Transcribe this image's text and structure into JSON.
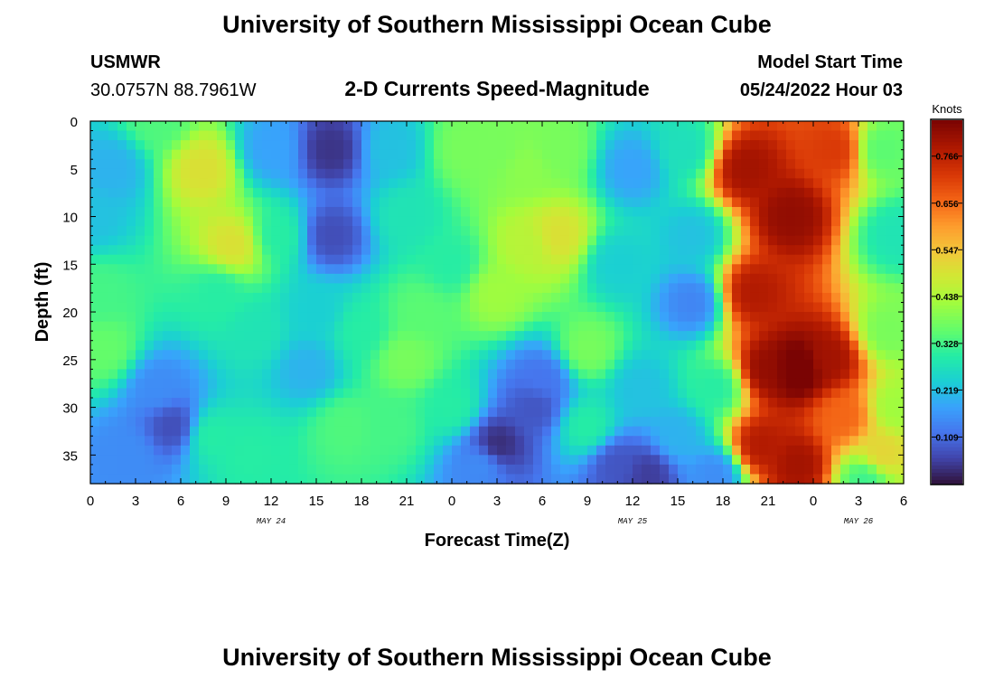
{
  "header": {
    "title": "University of Southern Mississippi Ocean Cube",
    "station": "USMWR",
    "coords": "30.0757N  88.7961W",
    "plot_title": "2-D Currents Speed-Magnitude",
    "model_label": "Model Start Time",
    "model_time": "05/24/2022 Hour 03"
  },
  "footer": {
    "title": "University of Southern Mississippi Ocean Cube"
  },
  "colors": {
    "low": "#30123b",
    "high": "#7a0403",
    "colormap": "turbo"
  },
  "chart_data": {
    "type": "heatmap",
    "xlabel": "Forecast Time(Z)",
    "ylabel": "Depth (ft)",
    "x_ticks": [
      "0",
      "3",
      "6",
      "9",
      "12",
      "15",
      "18",
      "21",
      "0",
      "3",
      "6",
      "9",
      "12",
      "15",
      "18",
      "21",
      "0",
      "3",
      "6"
    ],
    "x_tick_hours": [
      0,
      3,
      6,
      9,
      12,
      15,
      18,
      21,
      24,
      27,
      30,
      33,
      36,
      39,
      42,
      45,
      48,
      51,
      54
    ],
    "date_labels": [
      {
        "text": "MAY 24",
        "hour": 12
      },
      {
        "text": "MAY 25",
        "hour": 36
      },
      {
        "text": "MAY 26",
        "hour": 51
      }
    ],
    "y_ticks": [
      0,
      5,
      10,
      15,
      20,
      25,
      30,
      35
    ],
    "xlim": [
      0,
      54
    ],
    "ylim": [
      0,
      38
    ],
    "y_inverted": true,
    "colorbar": {
      "label": "Knots",
      "ticks": [
        "0.109",
        "0.219",
        "0.328",
        "0.438",
        "0.547",
        "0.656",
        "0.766"
      ],
      "tick_values": [
        0.109,
        0.219,
        0.328,
        0.438,
        0.547,
        0.656,
        0.766
      ],
      "range": [
        0.0,
        0.85
      ]
    },
    "blobs": [
      {
        "h": 0,
        "d": 10,
        "v": 0.22
      },
      {
        "h": 1.5,
        "d": 5,
        "v": 0.2
      },
      {
        "h": 0.5,
        "d": 18,
        "v": 0.33
      },
      {
        "h": 1,
        "d": 24,
        "v": 0.36
      },
      {
        "h": 4.5,
        "d": 0,
        "v": 0.34
      },
      {
        "h": 7.5,
        "d": 5,
        "v": 0.5
      },
      {
        "h": 9.5,
        "d": 13,
        "v": 0.5
      },
      {
        "h": 8.5,
        "d": 18,
        "v": 0.3
      },
      {
        "h": 4.5,
        "d": 28,
        "v": 0.15
      },
      {
        "h": 5.5,
        "d": 32,
        "v": 0.07
      },
      {
        "h": 2.5,
        "d": 35,
        "v": 0.15
      },
      {
        "h": 8,
        "d": 33,
        "v": 0.3
      },
      {
        "h": 11,
        "d": 22,
        "v": 0.28
      },
      {
        "h": 10.5,
        "d": 35,
        "v": 0.3
      },
      {
        "h": 12,
        "d": 3,
        "v": 0.18
      },
      {
        "h": 12.5,
        "d": 12,
        "v": 0.3
      },
      {
        "h": 16,
        "d": 3,
        "v": 0.04
      },
      {
        "h": 16,
        "d": 12,
        "v": 0.07
      },
      {
        "h": 15,
        "d": 20,
        "v": 0.24
      },
      {
        "h": 14.5,
        "d": 26,
        "v": 0.2
      },
      {
        "h": 17,
        "d": 32,
        "v": 0.34
      },
      {
        "h": 18,
        "d": 22,
        "v": 0.3
      },
      {
        "h": 20,
        "d": 3,
        "v": 0.22
      },
      {
        "h": 21,
        "d": 10,
        "v": 0.28
      },
      {
        "h": 21,
        "d": 25,
        "v": 0.38
      },
      {
        "h": 22,
        "d": 20,
        "v": 0.35
      },
      {
        "h": 20,
        "d": 32,
        "v": 0.33
      },
      {
        "h": 25,
        "d": 3,
        "v": 0.38
      },
      {
        "h": 24,
        "d": 15,
        "v": 0.3
      },
      {
        "h": 24,
        "d": 30,
        "v": 0.3
      },
      {
        "h": 27,
        "d": 3,
        "v": 0.38
      },
      {
        "h": 27,
        "d": 18,
        "v": 0.42
      },
      {
        "h": 29,
        "d": 13,
        "v": 0.45
      },
      {
        "h": 31,
        "d": 12,
        "v": 0.5
      },
      {
        "h": 29,
        "d": 5,
        "v": 0.4
      },
      {
        "h": 31,
        "d": 3,
        "v": 0.38
      },
      {
        "h": 27,
        "d": 34,
        "v": 0.03
      },
      {
        "h": 29.5,
        "d": 30,
        "v": 0.08
      },
      {
        "h": 30,
        "d": 27,
        "v": 0.12
      },
      {
        "h": 26,
        "d": 36,
        "v": 0.15
      },
      {
        "h": 33,
        "d": 24,
        "v": 0.38
      },
      {
        "h": 33,
        "d": 32,
        "v": 0.3
      },
      {
        "h": 36,
        "d": 5,
        "v": 0.18
      },
      {
        "h": 35,
        "d": 15,
        "v": 0.24
      },
      {
        "h": 36.5,
        "d": 28,
        "v": 0.22
      },
      {
        "h": 35,
        "d": 36,
        "v": 0.08
      },
      {
        "h": 37,
        "d": 37,
        "v": 0.05
      },
      {
        "h": 39.5,
        "d": 3,
        "v": 0.27
      },
      {
        "h": 40,
        "d": 19,
        "v": 0.14
      },
      {
        "h": 40,
        "d": 12,
        "v": 0.22
      },
      {
        "h": 39,
        "d": 33,
        "v": 0.2
      },
      {
        "h": 41.5,
        "d": 28,
        "v": 0.3
      },
      {
        "h": 41.5,
        "d": 37,
        "v": 0.15
      },
      {
        "h": 43.5,
        "d": 5,
        "v": 0.8
      },
      {
        "h": 44,
        "d": 18,
        "v": 0.78
      },
      {
        "h": 45,
        "d": 26,
        "v": 0.82
      },
      {
        "h": 44.5,
        "d": 34,
        "v": 0.78
      },
      {
        "h": 46.5,
        "d": 10,
        "v": 0.82
      },
      {
        "h": 47,
        "d": 26,
        "v": 0.88
      },
      {
        "h": 47,
        "d": 36,
        "v": 0.8
      },
      {
        "h": 49.5,
        "d": 3,
        "v": 0.72
      },
      {
        "h": 49,
        "d": 25,
        "v": 0.8
      },
      {
        "h": 50,
        "d": 31,
        "v": 0.66
      },
      {
        "h": 52.5,
        "d": 35,
        "v": 0.52
      },
      {
        "h": 52.5,
        "d": 3,
        "v": 0.35
      },
      {
        "h": 53.5,
        "d": 12,
        "v": 0.28
      },
      {
        "h": 53,
        "d": 22,
        "v": 0.38
      },
      {
        "h": 53.5,
        "d": 30,
        "v": 0.42
      },
      {
        "h": 51.5,
        "d": 37.5,
        "v": 0.32
      }
    ]
  }
}
